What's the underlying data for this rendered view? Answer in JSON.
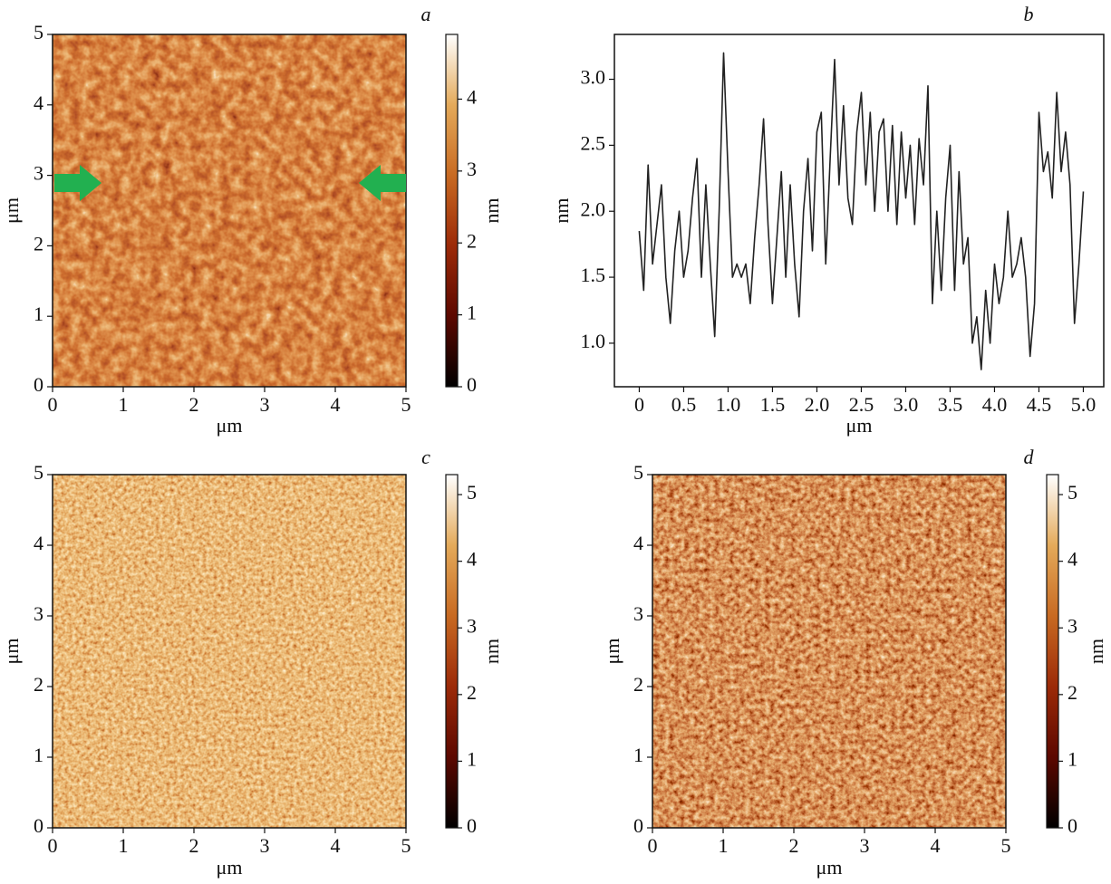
{
  "chart_data": [
    {
      "type": "image",
      "panel_label": "a",
      "x_label": "μm",
      "y_label": "μm",
      "xlim": [
        0,
        5
      ],
      "xticks": [
        0,
        1,
        2,
        3,
        4,
        5
      ],
      "ylim": [
        0,
        5
      ],
      "yticks": [
        0,
        1,
        2,
        3,
        4,
        5
      ],
      "colormap": [
        "#000000",
        "#5c0800",
        "#9c2a08",
        "#c86a22",
        "#e4aa5a",
        "#ffffff"
      ],
      "colorbar": {
        "label": "nm",
        "lim": [
          0,
          4.9
        ],
        "ticks": [
          0,
          1,
          2,
          3,
          4
        ]
      }
    },
    {
      "type": "line",
      "panel_label": "b",
      "x_label": "μm",
      "y_label": "nm",
      "color": "#222222",
      "xlim": [
        -0.28,
        5.23
      ],
      "xticks": [
        0,
        0.5,
        {
          "value": 1,
          "label": "1.0"
        },
        1.5,
        {
          "value": 2,
          "label": "2.0"
        },
        2.5,
        {
          "value": 3,
          "label": "3.0"
        },
        3.5,
        {
          "value": 4,
          "label": "4.0"
        },
        4.5,
        {
          "value": 5,
          "label": "5.0"
        }
      ],
      "ylim": [
        0.67,
        3.34
      ],
      "yticks": [
        {
          "value": 1,
          "label": "1.0"
        },
        1.5,
        {
          "value": 2,
          "label": "2.0"
        },
        2.5,
        {
          "value": 3,
          "label": "3.0"
        }
      ],
      "x": [
        0,
        0.05,
        0.1,
        0.15,
        0.2,
        0.25,
        0.3,
        0.35,
        0.4,
        0.45,
        0.5,
        0.55,
        0.6,
        0.65,
        0.7,
        0.75,
        0.8,
        0.85,
        0.9,
        0.95,
        1,
        1.05,
        1.1,
        1.15,
        1.2,
        1.25,
        1.3,
        1.35,
        1.4,
        1.45,
        1.5,
        1.55,
        1.6,
        1.65,
        1.7,
        1.75,
        1.8,
        1.85,
        1.9,
        1.95,
        2,
        2.05,
        2.1,
        2.15,
        2.2,
        2.25,
        2.3,
        2.35,
        2.4,
        2.45,
        2.5,
        2.55,
        2.6,
        2.65,
        2.7,
        2.75,
        2.8,
        2.85,
        2.9,
        2.95,
        3,
        3.05,
        3.1,
        3.15,
        3.2,
        3.25,
        3.3,
        3.35,
        3.4,
        3.45,
        3.5,
        3.55,
        3.6,
        3.65,
        3.7,
        3.75,
        3.8,
        3.85,
        3.9,
        3.95,
        4,
        4.05,
        4.1,
        4.15,
        4.2,
        4.25,
        4.3,
        4.35,
        4.4,
        4.45,
        4.5,
        4.55,
        4.6,
        4.65,
        4.7,
        4.75,
        4.8,
        4.85,
        4.9,
        4.95,
        5
      ],
      "values": [
        1.85,
        1.4,
        2.35,
        1.6,
        1.9,
        2.2,
        1.5,
        1.15,
        1.7,
        2.0,
        1.5,
        1.7,
        2.1,
        2.4,
        1.5,
        2.2,
        1.6,
        1.05,
        2.0,
        3.2,
        2.3,
        1.5,
        1.6,
        1.5,
        1.6,
        1.3,
        1.8,
        2.2,
        2.7,
        1.9,
        1.3,
        1.8,
        2.3,
        1.5,
        2.2,
        1.6,
        1.2,
        2.0,
        2.4,
        1.7,
        2.6,
        2.75,
        1.6,
        2.4,
        3.15,
        2.2,
        2.8,
        2.1,
        1.9,
        2.6,
        2.9,
        2.2,
        2.75,
        2.0,
        2.6,
        2.7,
        2.0,
        2.65,
        1.9,
        2.6,
        2.1,
        2.5,
        1.9,
        2.55,
        2.2,
        2.95,
        1.3,
        2.0,
        1.4,
        2.1,
        2.5,
        1.4,
        2.3,
        1.6,
        1.8,
        1.0,
        1.2,
        0.8,
        1.4,
        1.0,
        1.6,
        1.3,
        1.5,
        2.0,
        1.5,
        1.6,
        1.8,
        1.5,
        0.9,
        1.3,
        2.75,
        2.3,
        2.45,
        2.1,
        2.9,
        2.3,
        2.6,
        2.2,
        1.15,
        1.6,
        2.15
      ]
    },
    {
      "type": "image",
      "panel_label": "c",
      "x_label": "μm",
      "y_label": "μm",
      "xlim": [
        0,
        5
      ],
      "xticks": [
        0,
        1,
        2,
        3,
        4,
        5
      ],
      "ylim": [
        0,
        5
      ],
      "yticks": [
        0,
        1,
        2,
        3,
        4,
        5
      ],
      "colormap": [
        "#000000",
        "#5c0800",
        "#9c2a08",
        "#c86a22",
        "#e4aa5a",
        "#ffffff"
      ],
      "colorbar": {
        "label": "nm",
        "lim": [
          0,
          5.3
        ],
        "ticks": [
          0,
          1,
          2,
          3,
          4,
          5
        ]
      }
    },
    {
      "type": "image",
      "panel_label": "d",
      "x_label": "μm",
      "y_label": "μm",
      "xlim": [
        0,
        5
      ],
      "xticks": [
        0,
        1,
        2,
        3,
        4,
        5
      ],
      "ylim": [
        0,
        5
      ],
      "yticks": [
        0,
        1,
        2,
        3,
        4,
        5
      ],
      "colormap": [
        "#000000",
        "#5c0800",
        "#9c2a08",
        "#c86a22",
        "#e4aa5a",
        "#ffffff"
      ],
      "colorbar": {
        "label": "nm",
        "lim": [
          0,
          5.3
        ],
        "ticks": [
          0,
          1,
          2,
          3,
          4,
          5
        ]
      }
    }
  ]
}
